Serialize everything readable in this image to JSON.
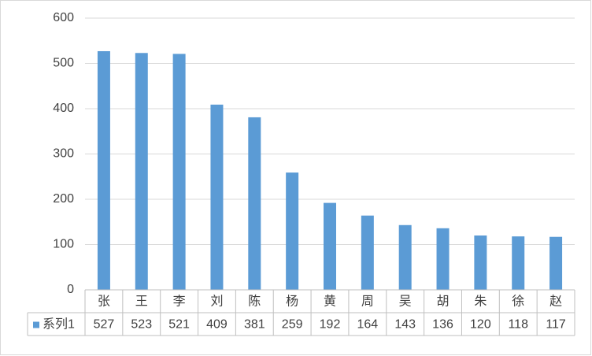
{
  "chart_data": {
    "type": "bar",
    "categories": [
      "张",
      "王",
      "李",
      "刘",
      "陈",
      "杨",
      "黄",
      "周",
      "吴",
      "胡",
      "朱",
      "徐",
      "赵"
    ],
    "series": [
      {
        "name": "系列1",
        "color": "#5b9bd5",
        "values": [
          527,
          523,
          521,
          409,
          381,
          259,
          192,
          164,
          143,
          136,
          120,
          118,
          117
        ]
      }
    ],
    "ylim": [
      0,
      600
    ],
    "yticks": [
      0,
      100,
      200,
      300,
      400,
      500,
      600
    ],
    "grid": true,
    "data_table": true
  }
}
